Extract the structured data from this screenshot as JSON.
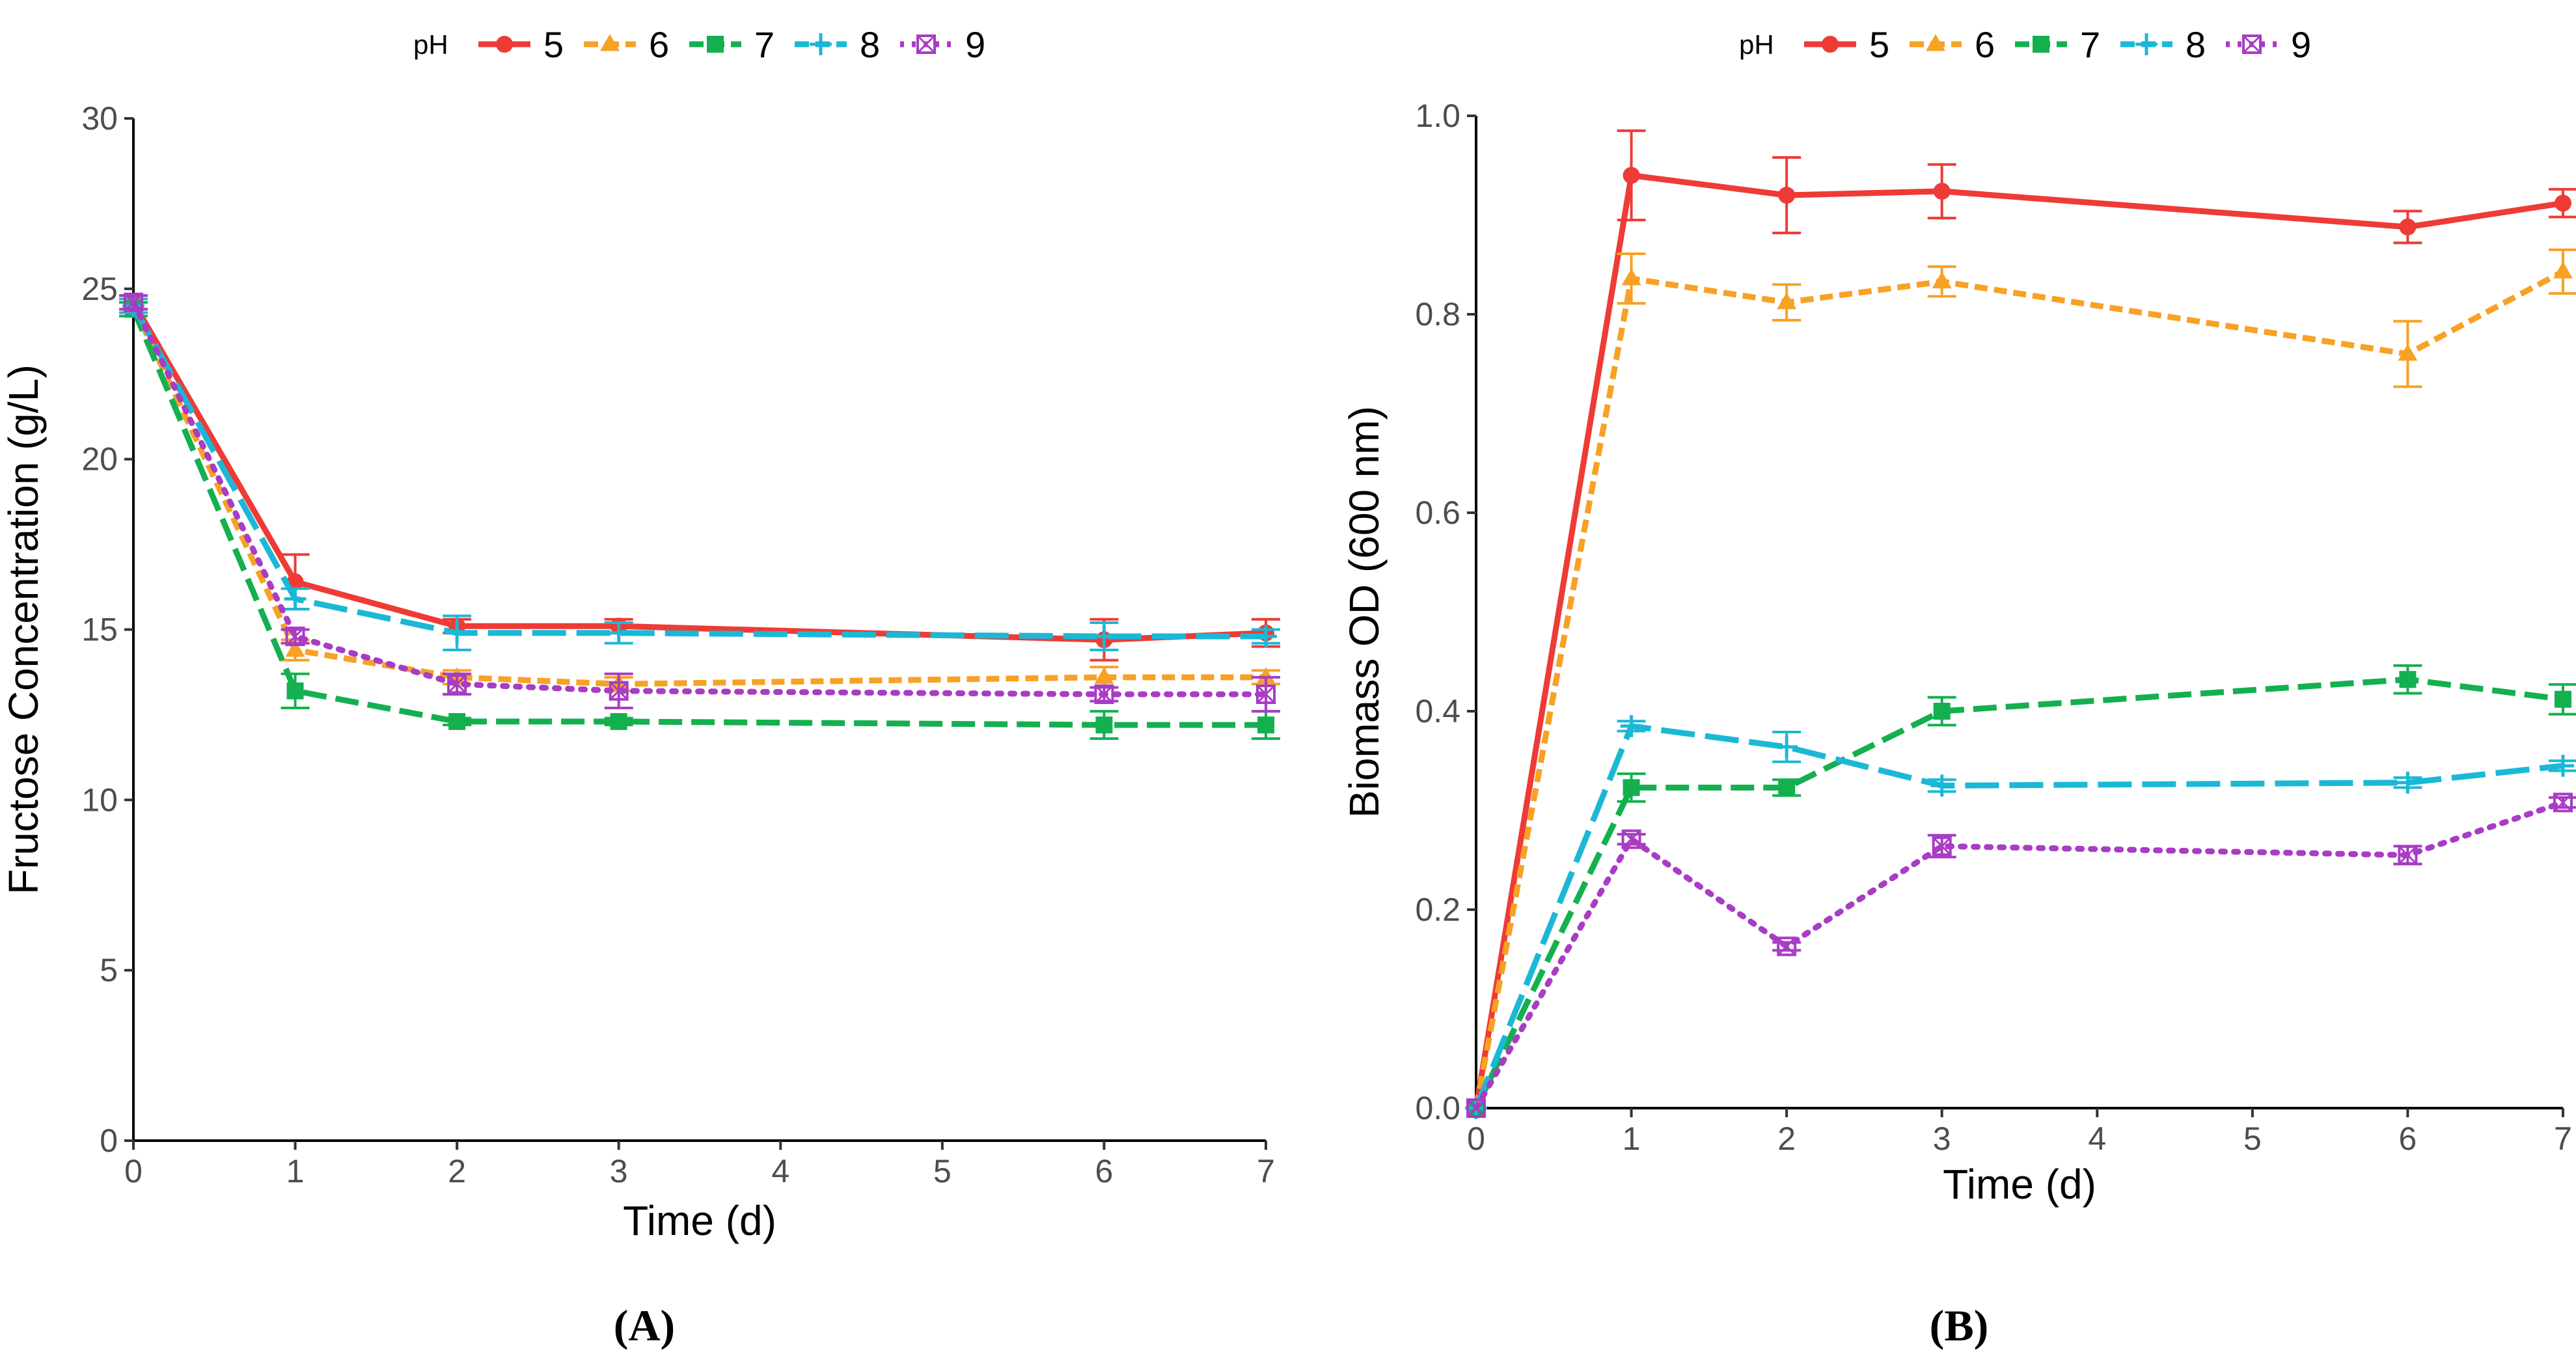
{
  "chart_data": [
    {
      "panel_label": "(A)",
      "type": "line",
      "xlabel": "Time (d)",
      "ylabel": "Fructose Concentration (g/L)",
      "xlim": [
        0,
        7
      ],
      "ylim": [
        0,
        30
      ],
      "x_ticks": [
        "0",
        "1",
        "2",
        "3",
        "4",
        "5",
        "6",
        "7"
      ],
      "y_ticks": [
        "0",
        "5",
        "10",
        "15",
        "20",
        "25",
        "30"
      ],
      "grid": false,
      "legend_title": "pH",
      "legend_position": "top",
      "x": [
        0,
        1,
        2,
        3,
        6,
        7
      ],
      "series": [
        {
          "name": "5",
          "color": "#ee3b36",
          "dash": "solid",
          "marker": "circle",
          "values": [
            24.6,
            16.4,
            15.1,
            15.1,
            14.7,
            14.9
          ],
          "errors": [
            0.2,
            0.8,
            0.2,
            0.2,
            0.6,
            0.4
          ]
        },
        {
          "name": "6",
          "color": "#f7a125",
          "dash": "short",
          "marker": "triangle",
          "values": [
            24.5,
            14.4,
            13.6,
            13.4,
            13.6,
            13.6
          ],
          "errors": [
            0.2,
            0.3,
            0.2,
            0.2,
            0.3,
            0.2
          ]
        },
        {
          "name": "7",
          "color": "#14b04f",
          "dash": "long",
          "marker": "square",
          "values": [
            24.4,
            13.2,
            12.3,
            12.3,
            12.2,
            12.2
          ],
          "errors": [
            0.2,
            0.5,
            0.1,
            0.1,
            0.4,
            0.4
          ]
        },
        {
          "name": "8",
          "color": "#1bb8d6",
          "dash": "longer",
          "marker": "plus",
          "values": [
            24.5,
            15.9,
            14.9,
            14.9,
            14.8,
            14.8
          ],
          "errors": [
            0.2,
            0.3,
            0.5,
            0.3,
            0.4,
            0.2
          ]
        },
        {
          "name": "9",
          "color": "#a83cc4",
          "dash": "dotted",
          "marker": "boxx",
          "values": [
            24.6,
            14.8,
            13.4,
            13.2,
            13.1,
            13.1
          ],
          "errors": [
            0.2,
            0.2,
            0.3,
            0.5,
            0.2,
            0.5
          ]
        }
      ]
    },
    {
      "panel_label": "(B)",
      "type": "line",
      "xlabel": "Time (d)",
      "ylabel": "Biomass OD (600 nm)",
      "xlim": [
        0,
        7
      ],
      "ylim": [
        0,
        1
      ],
      "x_ticks": [
        "0",
        "1",
        "2",
        "3",
        "4",
        "5",
        "6",
        "7"
      ],
      "y_ticks": [
        "0.0",
        "0.2",
        "0.4",
        "0.6",
        "0.8",
        "1.0"
      ],
      "grid": false,
      "legend_title": "pH",
      "legend_position": "top",
      "x": [
        0,
        1,
        2,
        3,
        6,
        7
      ],
      "series": [
        {
          "name": "5",
          "color": "#ee3b36",
          "dash": "solid",
          "marker": "circle",
          "values": [
            0.0,
            0.94,
            0.92,
            0.924,
            0.888,
            0.912
          ],
          "errors": [
            0,
            0.045,
            0.038,
            0.027,
            0.016,
            0.014
          ]
        },
        {
          "name": "6",
          "color": "#f7a125",
          "dash": "short",
          "marker": "triangle",
          "values": [
            0.0,
            0.836,
            0.812,
            0.833,
            0.76,
            0.843
          ],
          "errors": [
            0,
            0.025,
            0.018,
            0.015,
            0.033,
            0.022
          ]
        },
        {
          "name": "7",
          "color": "#14b04f",
          "dash": "long",
          "marker": "square",
          "values": [
            0.0,
            0.323,
            0.323,
            0.4,
            0.432,
            0.412
          ],
          "errors": [
            0,
            0.014,
            0.008,
            0.014,
            0.014,
            0.015
          ]
        },
        {
          "name": "8",
          "color": "#1bb8d6",
          "dash": "longer",
          "marker": "plus",
          "values": [
            0.0,
            0.385,
            0.364,
            0.325,
            0.328,
            0.345
          ],
          "errors": [
            0,
            0.005,
            0.015,
            0.006,
            0.005,
            0.005
          ]
        },
        {
          "name": "9",
          "color": "#a83cc4",
          "dash": "dotted",
          "marker": "boxx",
          "values": [
            0.0,
            0.271,
            0.163,
            0.264,
            0.255,
            0.308
          ],
          "errors": [
            0,
            0.005,
            0.004,
            0.011,
            0.009,
            0.005
          ]
        }
      ]
    }
  ]
}
